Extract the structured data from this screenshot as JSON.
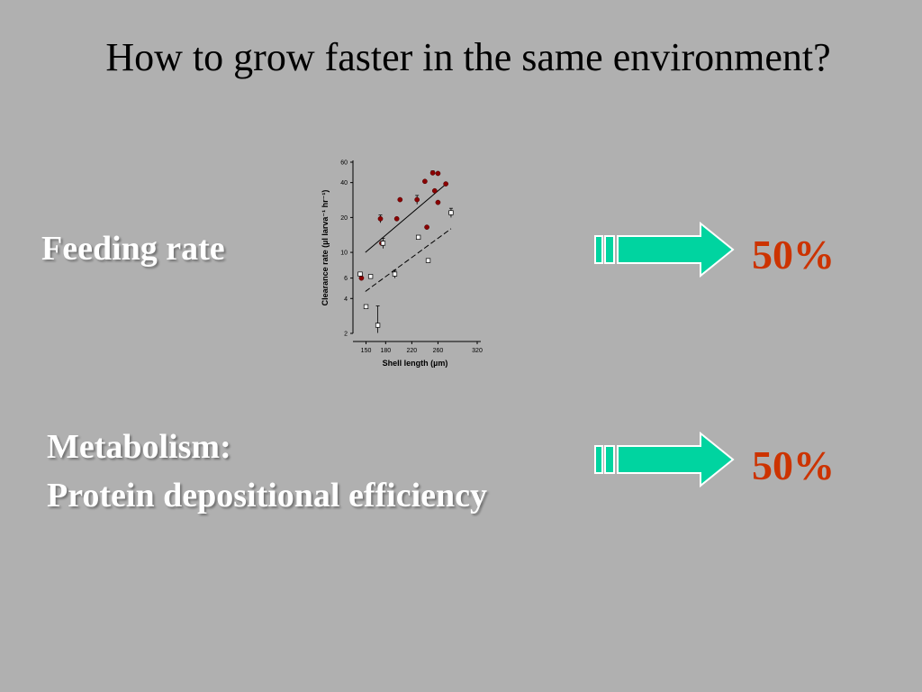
{
  "slide": {
    "title": "How to grow faster in the same environment?",
    "rows": [
      {
        "label": "Feeding rate",
        "value": "50%"
      },
      {
        "label_line1": "Metabolism:",
        "label_line2": "Protein depositional efficiency",
        "value": "50%"
      }
    ],
    "colors": {
      "background": "#b0b0b0",
      "arrow": "#00d4a0",
      "value": "#cc3300",
      "label": "#ffffff"
    },
    "icons": [
      "right-arrow-icon"
    ]
  },
  "chart_data": {
    "type": "scatter",
    "title": "",
    "xlabel": "Shell length (µm)",
    "ylabel": "Clearance rate (µl larva⁻¹ hr⁻¹)",
    "ylabel_sup1": "-1",
    "ylabel_sup2": "-1",
    "xlim": [
      130,
      320
    ],
    "ylim": [
      2,
      60
    ],
    "yscale": "log",
    "xticks": [
      150,
      180,
      220,
      260,
      320
    ],
    "yticks": [
      2,
      4,
      6,
      10,
      20,
      40,
      60
    ],
    "grid": false,
    "series": [
      {
        "marker": "filled-circle",
        "color": "#8b0000",
        "points": [
          {
            "x": 143,
            "y": 6.0
          },
          {
            "x": 172,
            "y": 19.5,
            "err": 1.5
          },
          {
            "x": 174,
            "y": 12.0
          },
          {
            "x": 202,
            "y": 28.5
          },
          {
            "x": 197,
            "y": 19.5
          },
          {
            "x": 228,
            "y": 28.5,
            "err": 2.5
          },
          {
            "x": 240,
            "y": 41.0
          },
          {
            "x": 243,
            "y": 16.5
          },
          {
            "x": 252,
            "y": 48.5,
            "err": 2.0
          },
          {
            "x": 255,
            "y": 34.0
          },
          {
            "x": 260,
            "y": 27.0
          },
          {
            "x": 260,
            "y": 48.0
          },
          {
            "x": 272,
            "y": 39.0
          }
        ]
      },
      {
        "marker": "open-square",
        "color": "#ffffff",
        "points": [
          {
            "x": 141,
            "y": 6.5
          },
          {
            "x": 150,
            "y": 3.4
          },
          {
            "x": 157,
            "y": 6.2
          },
          {
            "x": 168,
            "y": 2.35,
            "err": 1.1
          },
          {
            "x": 176,
            "y": 12.0,
            "err": 1.2
          },
          {
            "x": 194,
            "y": 6.5,
            "err": 0.5
          },
          {
            "x": 230,
            "y": 13.5
          },
          {
            "x": 245,
            "y": 8.5
          },
          {
            "x": 280,
            "y": 22.0,
            "err": 2.0
          }
        ]
      }
    ],
    "lines": [
      {
        "style": "solid",
        "x": [
          149,
          275
        ],
        "y": [
          10.0,
          40.0
        ]
      },
      {
        "style": "dashed",
        "x": [
          149,
          280
        ],
        "y": [
          4.6,
          16.0
        ]
      }
    ]
  }
}
